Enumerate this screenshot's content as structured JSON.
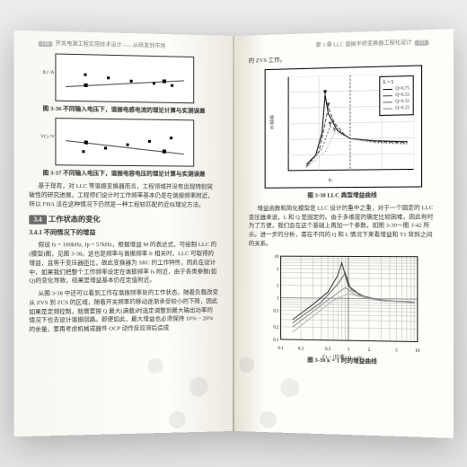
{
  "left_page": {
    "header_prefix": "开关电源工程实用技术设计——从研发到市场",
    "page_no": "110",
    "chart1": {
      "caption": "图 3-36  不同输入电压下，谐振电感电流的理论计算与实测误差",
      "ylabel": "iLr /A",
      "xlabel": "Vin /V",
      "xlim": [
        100,
        400
      ],
      "ylim": [
        0,
        5
      ],
      "line_color": "#333333",
      "points": [
        [
          120,
          3.4
        ],
        [
          160,
          3.1
        ],
        [
          200,
          2.9
        ],
        [
          240,
          2.7
        ],
        [
          280,
          2.6
        ],
        [
          320,
          2.5
        ],
        [
          360,
          2.4
        ]
      ]
    },
    "chart2": {
      "caption": "图 3-37  不同输入电压下，谐振电容电压的理论计算与实测误差",
      "ylabel": "VCr /V",
      "xlabel": "Vin /V",
      "xlim": [
        100,
        400
      ],
      "ylim": [
        0,
        600
      ],
      "line_color": "#333333",
      "points": [
        [
          120,
          180
        ],
        [
          160,
          220
        ],
        [
          200,
          270
        ],
        [
          240,
          320
        ],
        [
          280,
          370
        ],
        [
          320,
          420
        ],
        [
          360,
          470
        ]
      ]
    },
    "para1": "基于现有，对 LLC 等谐振变换器而言，工程领域并没有出现特别突破性的研究进展，工程师们设计时工作频率基本仍是在谐振频率附近，所以 FHA 法在这种情况下仍然是一种工程较匹配的近似理论方法。",
    "section_no": "3.4",
    "section_title": "工作状态的变化",
    "sub_no": "3.4.1",
    "sub_title": "不同情况下的增益",
    "para2": "假设 fs = 100kHz, fp = 57kHz，根据增益 M 的表达式，可绘制 LLC 的(模型)图，见图 3-38。这也是频率与谐振频率 fr 相关时，LLC 可取得的增益，且等于变压器匝比，故此变换器为 SRC 的工作特性，因此在设计中，如果我们把整个工作频率设定在谐振频率 fs 附近，由于各类参数(如 Q)的变化导致，结果是增益基本仍在定值附近。",
    "para3": "从图 3-38 中还可以看到工作在谐振频率处的工作状态，随着负载改变从 ZVS 到 ZCS 的区域，随着开关频率的移动逐渐承受较小的下降，因此如果是定频控制，就需要按 Q 最大(满载)时选定调整到最大输出功率的情况下也去设计谐振回路。即便如此，最大增益也必须保持 10% ~ 20% 的余量，要再考虑机械或器件 OCP 动作反应滞后造成"
  },
  "right_page": {
    "header_suffix": "第 3 章  LLC 谐振半桥变换器工程化设计",
    "page_no": "111",
    "top_line": "的 ZVS 工作。",
    "peak_chart": {
      "caption": "图 3-38  LLC 典型增益曲线",
      "xlabel": "fn",
      "ylabel": "增益 M",
      "xlim": [
        0,
        2.0
      ],
      "ylim": [
        0,
        3.0
      ],
      "grid_color": "#000000",
      "resonance_marker": {
        "x": 1.0,
        "label": "fr = fs"
      },
      "legend_title": "L = 5",
      "legend": [
        {
          "label": "Q=0.75",
          "color": "#000000",
          "dash": "0"
        },
        {
          "label": "Q=0.55",
          "color": "#444444",
          "dash": "4 2"
        },
        {
          "label": "Q=0.35",
          "color": "#666666",
          "dash": "2 2"
        },
        {
          "label": "Q=0.25",
          "color": "#888888",
          "dash": "1 2"
        }
      ],
      "series": [
        {
          "q": "0.75",
          "color": "#000000",
          "dash": "0",
          "pts": [
            [
              0.3,
              0.2
            ],
            [
              0.45,
              0.5
            ],
            [
              0.55,
              1.2
            ],
            [
              0.6,
              2.4
            ],
            [
              0.65,
              1.8
            ],
            [
              0.8,
              1.25
            ],
            [
              1.0,
              1.0
            ],
            [
              1.4,
              0.92
            ],
            [
              1.9,
              0.88
            ]
          ]
        },
        {
          "q": "0.55",
          "color": "#444444",
          "dash": "4 2",
          "pts": [
            [
              0.3,
              0.15
            ],
            [
              0.5,
              0.6
            ],
            [
              0.6,
              1.5
            ],
            [
              0.65,
              2.0
            ],
            [
              0.75,
              1.5
            ],
            [
              0.9,
              1.15
            ],
            [
              1.0,
              1.0
            ],
            [
              1.4,
              0.9
            ],
            [
              1.9,
              0.85
            ]
          ]
        },
        {
          "q": "0.35",
          "color": "#666666",
          "dash": "2 2",
          "pts": [
            [
              0.3,
              0.12
            ],
            [
              0.55,
              0.7
            ],
            [
              0.68,
              1.4
            ],
            [
              0.8,
              1.3
            ],
            [
              1.0,
              1.0
            ],
            [
              1.4,
              0.88
            ],
            [
              1.9,
              0.82
            ]
          ]
        },
        {
          "q": "0.25",
          "color": "#888888",
          "dash": "1 2",
          "pts": [
            [
              0.3,
              0.1
            ],
            [
              0.6,
              0.6
            ],
            [
              0.75,
              1.2
            ],
            [
              0.9,
              1.1
            ],
            [
              1.0,
              1.0
            ],
            [
              1.4,
              0.85
            ],
            [
              1.9,
              0.8
            ]
          ]
        }
      ]
    },
    "para1": "增益函数和简化模型是 LLC 设计的重中之重，对于一个固定的 LLC 变压器来说，L 和 Q 是固定的。由于多维度的确定比较困难，因此有时为了方便，我们会在这个基础上再加一个参数，如图 3-39～图 3-42 所示。进一步的分析，需在不同的 Q 和 L 情况下来看增益和 T1 背斜之间的关系。",
    "bottom_chart": {
      "caption": "图 3-39  k = 1 时的增益曲线",
      "xlabel": "F1 = (比率) Q = 10",
      "ylabel": "增益",
      "xlim": [
        0.1,
        10
      ],
      "ylim": [
        0.1,
        10
      ],
      "xscale": "log",
      "yscale": "log",
      "grid_color": "#777777",
      "major_grid_color": "#333333",
      "xticks": [
        0.1,
        0.2,
        0.5,
        1,
        2,
        5,
        10
      ],
      "yticks": [
        0.1,
        0.2,
        0.5,
        1,
        2,
        5,
        10
      ],
      "series": [
        {
          "color": "#222222",
          "pts": [
            [
              0.15,
              0.3
            ],
            [
              0.3,
              0.7
            ],
            [
              0.5,
              1.4
            ],
            [
              0.7,
              3.5
            ],
            [
              0.8,
              7.0
            ],
            [
              1.0,
              2.0
            ],
            [
              1.5,
              1.2
            ],
            [
              3,
              0.9
            ],
            [
              8,
              0.85
            ]
          ]
        },
        {
          "color": "#555555",
          "pts": [
            [
              0.15,
              0.25
            ],
            [
              0.4,
              0.8
            ],
            [
              0.7,
              2.2
            ],
            [
              0.9,
              4.0
            ],
            [
              1.1,
              1.6
            ],
            [
              2,
              1.0
            ],
            [
              5,
              0.88
            ],
            [
              9,
              0.84
            ]
          ]
        },
        {
          "color": "#888888",
          "pts": [
            [
              0.15,
              0.2
            ],
            [
              0.5,
              0.9
            ],
            [
              0.9,
              1.8
            ],
            [
              1.2,
              1.3
            ],
            [
              2.5,
              0.95
            ],
            [
              6,
              0.86
            ],
            [
              9,
              0.82
            ]
          ]
        },
        {
          "color": "#aaaaaa",
          "pts": [
            [
              0.15,
              0.15
            ],
            [
              0.6,
              0.9
            ],
            [
              1.0,
              1.3
            ],
            [
              1.5,
              1.1
            ],
            [
              3,
              0.9
            ],
            [
              7,
              0.84
            ],
            [
              9,
              0.8
            ]
          ]
        }
      ]
    }
  },
  "colors": {
    "page_bg": "#fdfdfa",
    "ink": "#222222",
    "accent": "#6b6b6b",
    "outer_bg": "#e8e8e8"
  }
}
